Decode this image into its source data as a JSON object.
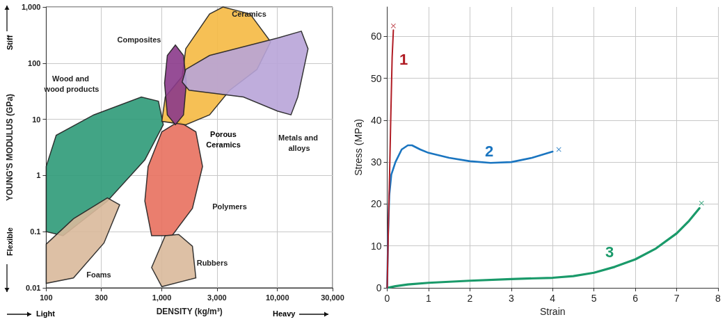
{
  "chart_data": [
    {
      "type": "area",
      "xlabel": "DENSITY (kg/m³)",
      "ylabel": "YOUNG'S MODULUS (GPa)",
      "log": "xy",
      "grid": true,
      "xlim": [
        100,
        30000
      ],
      "xticks": [
        100,
        300,
        {
          "value": 1000,
          "label": "1,000"
        },
        {
          "value": 3000,
          "label": "3,000"
        },
        {
          "value": 10000,
          "label": "10,000"
        },
        {
          "value": 30000,
          "label": "30,000"
        }
      ],
      "ylim": [
        0.01,
        1000
      ],
      "yticks": [
        0.01,
        0.1,
        1,
        10,
        100,
        {
          "value": 1000,
          "label": "1,000"
        }
      ],
      "series": [
        {
          "name": "Wood and wood products",
          "color": "#2e9a78",
          "x": [
            100,
            122,
            258,
            665,
            935,
            1030,
            714,
            338,
            140,
            100
          ],
          "values": [
            1.45,
            5.2,
            12,
            25,
            21,
            8,
            1.9,
            0.35,
            0.085,
            0.1
          ]
        },
        {
          "name": "Foams",
          "color": "#d9b99b",
          "x": [
            100,
            172,
            338,
            432,
            316,
            172,
            100
          ],
          "values": [
            0.06,
            0.17,
            0.4,
            0.3,
            0.063,
            0.015,
            0.012
          ]
        },
        {
          "name": "Polymers",
          "color": "#e8705e",
          "x": [
            1000,
            1400,
            1970,
            2250,
            1840,
            1225,
            816,
            713,
            761
          ],
          "values": [
            6,
            9.2,
            6,
            1.45,
            0.26,
            0.085,
            0.085,
            0.35,
            1.45
          ]
        },
        {
          "name": "Rubbers",
          "color": "#d9b99b",
          "x": [
            816,
            1070,
            1400,
            1840,
            1970,
            1000
          ],
          "values": [
            0.023,
            0.085,
            0.089,
            0.055,
            0.015,
            0.0105
          ]
        },
        {
          "name": "Ceramics",
          "color": "#f5b942",
          "x": [
            1610,
            2590,
            3380,
            5800,
            8740,
            6650,
            3870,
            2590,
            1610,
            1000,
            1070,
            1500
          ],
          "values": [
            180,
            750,
            1000,
            750,
            240,
            77,
            33,
            12,
            8,
            9.2,
            25,
            58
          ]
        },
        {
          "name": "Composites",
          "color": "#8b3a8b",
          "x": [
            1310,
            1540,
            1630,
            1540,
            1310,
            1116,
            1056,
            1116
          ],
          "values": [
            210,
            137,
            44,
            12,
            8,
            12,
            44,
            137
          ]
        },
        {
          "name": "Metals and alloys",
          "color": "#b8a4d8",
          "x": [
            1610,
            2590,
            10000,
            16100,
            18400,
            15000,
            13100,
            10000,
            5080,
            1720,
            1500
          ],
          "values": [
            77,
            137,
            280,
            370,
            180,
            25,
            12,
            14,
            25,
            33,
            46
          ]
        }
      ],
      "annotations": [
        "Porous Ceramics",
        "Light",
        "Heavy",
        "Stiff",
        "Flexible"
      ]
    },
    {
      "type": "line",
      "xlabel": "Strain",
      "ylabel": "Stress (MPa)",
      "grid": true,
      "line_style": "solid",
      "xlim": [
        0,
        8
      ],
      "xticks": [
        0,
        1,
        2,
        3,
        4,
        5,
        6,
        7,
        8
      ],
      "ylim": [
        0,
        67
      ],
      "yticks": [
        0,
        10,
        20,
        30,
        40,
        50,
        60
      ],
      "series": [
        {
          "name": "1",
          "color": "#b01c24",
          "x": [
            0,
            0.03,
            0.06,
            0.09,
            0.12,
            0.15
          ],
          "values": [
            0,
            15,
            28,
            42,
            55,
            61.5
          ]
        },
        {
          "name": "2",
          "color": "#1a75c0",
          "x": [
            0,
            0.02,
            0.05,
            0.1,
            0.2,
            0.35,
            0.5,
            0.6,
            0.8,
            1,
            1.5,
            2,
            2.5,
            3,
            3.5,
            4
          ],
          "values": [
            0,
            12,
            22,
            27,
            30,
            33,
            34,
            34,
            33,
            32.2,
            31,
            30.2,
            29.8,
            30,
            31,
            32.5
          ]
        },
        {
          "name": "3",
          "color": "#1a9a6a",
          "x": [
            0,
            0.2,
            0.5,
            1,
            2,
            3,
            4,
            4.5,
            5,
            5.5,
            6,
            6.5,
            7,
            7.3,
            7.55
          ],
          "values": [
            0,
            0.4,
            0.8,
            1.2,
            1.7,
            2.1,
            2.4,
            2.8,
            3.6,
            5,
            6.8,
            9.4,
            13,
            16,
            19
          ]
        },
        {
          "type": "scatter",
          "marker": "cross",
          "x": [
            0.15,
            4.15,
            7.6
          ],
          "values": [
            62.5,
            33,
            20.2
          ],
          "colors": [
            "#b01c24",
            "#1a75c0",
            "#1a9a6a"
          ]
        }
      ]
    }
  ]
}
